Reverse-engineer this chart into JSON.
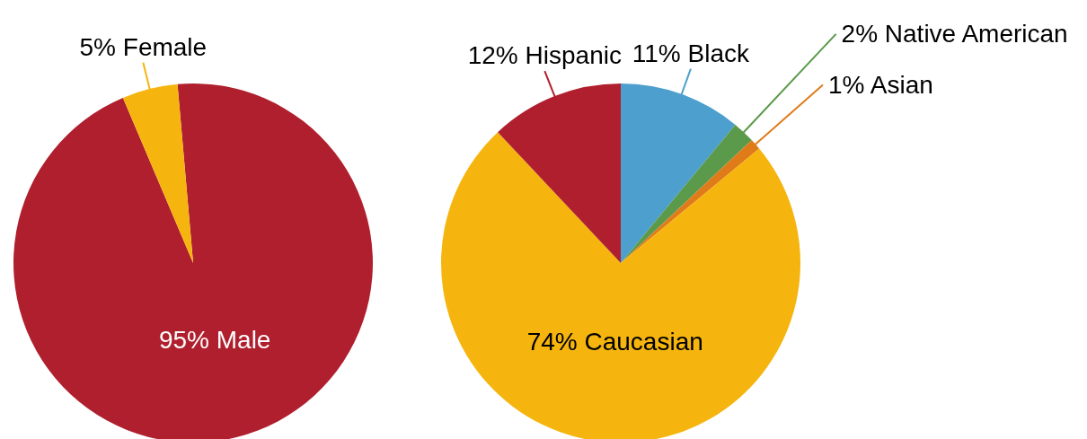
{
  "chart_data": [
    {
      "type": "pie",
      "categories": [
        "Male",
        "Female"
      ],
      "values": [
        95,
        5
      ],
      "value_labels": [
        "95%",
        "5%"
      ],
      "colors": [
        "#b01f2e",
        "#f5b50e"
      ]
    },
    {
      "type": "pie",
      "categories": [
        "Black",
        "Native American",
        "Asian",
        "Caucasian",
        "Hispanic"
      ],
      "values": [
        11,
        2,
        1,
        74,
        12
      ],
      "value_labels": [
        "11%",
        "2%",
        "1%",
        "74%",
        "12%"
      ],
      "colors": [
        "#4d9fce",
        "#5a9a4a",
        "#e07b1a",
        "#f5b50e",
        "#b01f2e"
      ]
    }
  ]
}
